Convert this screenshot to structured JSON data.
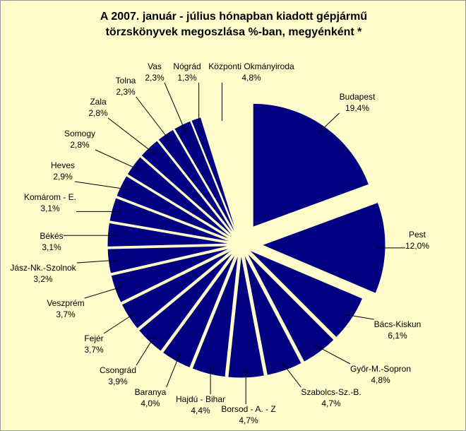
{
  "chart_data": {
    "type": "pie",
    "title": "A  2007. január - július hónapban kiadott gépjármű törzskönyvek megoszlása %-ban, megyénként *",
    "categories": [
      "Budapest",
      "Pest",
      "Bács-Kiskun",
      "Győr-M.-Sopron",
      "Szabolcs-Sz.-B.",
      "Borsod - A. - Z",
      "Hajdú - Bihar",
      "Baranya",
      "Csongrád",
      "Fejér",
      "Veszprém",
      "Jász-Nk.-Szolnok",
      "Békés",
      "Komárom - E.",
      "Heves",
      "Somogy",
      "Zala",
      "Tolna",
      "Vas",
      "Nógrád",
      "Központi Okmányiroda"
    ],
    "values": [
      19.4,
      12.0,
      6.1,
      4.8,
      4.7,
      4.7,
      4.4,
      4.0,
      3.9,
      3.7,
      3.7,
      3.2,
      3.1,
      3.1,
      2.9,
      2.8,
      2.8,
      2.3,
      2.3,
      1.3,
      4.8
    ],
    "value_labels": [
      "19,4%",
      "12,0%",
      "6,1%",
      "4,8%",
      "4,7%",
      "4,7%",
      "4,4%",
      "4,0%",
      "3,9%",
      "3,7%",
      "3,7%",
      "3,2%",
      "3,1%",
      "3,1%",
      "2,9%",
      "2,8%",
      "2,8%",
      "2,3%",
      "2,3%",
      "1,3%",
      "4,8%"
    ],
    "colors": [
      "#000080",
      "#000080",
      "#000080",
      "#000080",
      "#000080",
      "#000080",
      "#000080",
      "#000080",
      "#000080",
      "#000080",
      "#000080",
      "#000080",
      "#000080",
      "#000080",
      "#000080",
      "#000080",
      "#000080",
      "#000080",
      "#000080",
      "#000080",
      "#fffccc"
    ]
  }
}
